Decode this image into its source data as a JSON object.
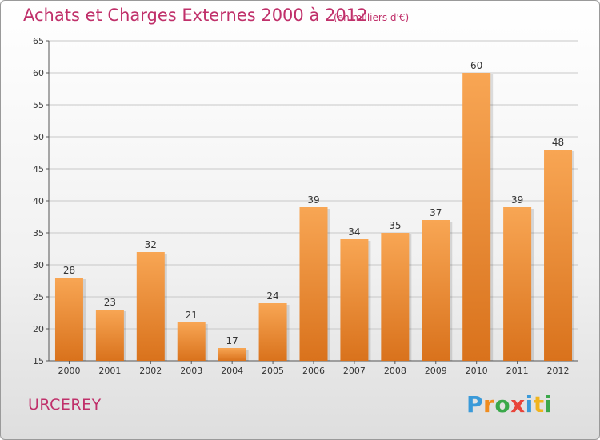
{
  "title": "Achats et Charges Externes 2000 à 2012",
  "subtitle": "(en milliers d'€)",
  "commune": "URCEREY",
  "logo": {
    "text": "Proxiti",
    "letters": [
      {
        "ch": "P",
        "color": "#3a9ad9"
      },
      {
        "ch": "r",
        "color": "#f08c1e"
      },
      {
        "ch": "o",
        "color": "#3aa84a"
      },
      {
        "ch": "x",
        "color": "#e8443a"
      },
      {
        "ch": "i",
        "color": "#3a9ad9"
      },
      {
        "ch": "t",
        "color": "#f0b41e"
      },
      {
        "ch": "i",
        "color": "#3aa84a"
      }
    ]
  },
  "colors": {
    "bar_top": "#f8a654",
    "bar_bottom": "#d9721c",
    "title": "#c0306a",
    "grid": "#c8c8c8"
  },
  "chart_data": {
    "type": "bar",
    "categories": [
      "2000",
      "2001",
      "2002",
      "2003",
      "2004",
      "2005",
      "2006",
      "2007",
      "2008",
      "2009",
      "2010",
      "2011",
      "2012"
    ],
    "values": [
      28,
      23,
      32,
      21,
      17,
      24,
      39,
      34,
      35,
      37,
      60,
      39,
      48
    ],
    "ylim": [
      15,
      65
    ],
    "yticks": [
      15,
      20,
      25,
      30,
      35,
      40,
      45,
      50,
      55,
      60,
      65
    ],
    "grid": true
  }
}
